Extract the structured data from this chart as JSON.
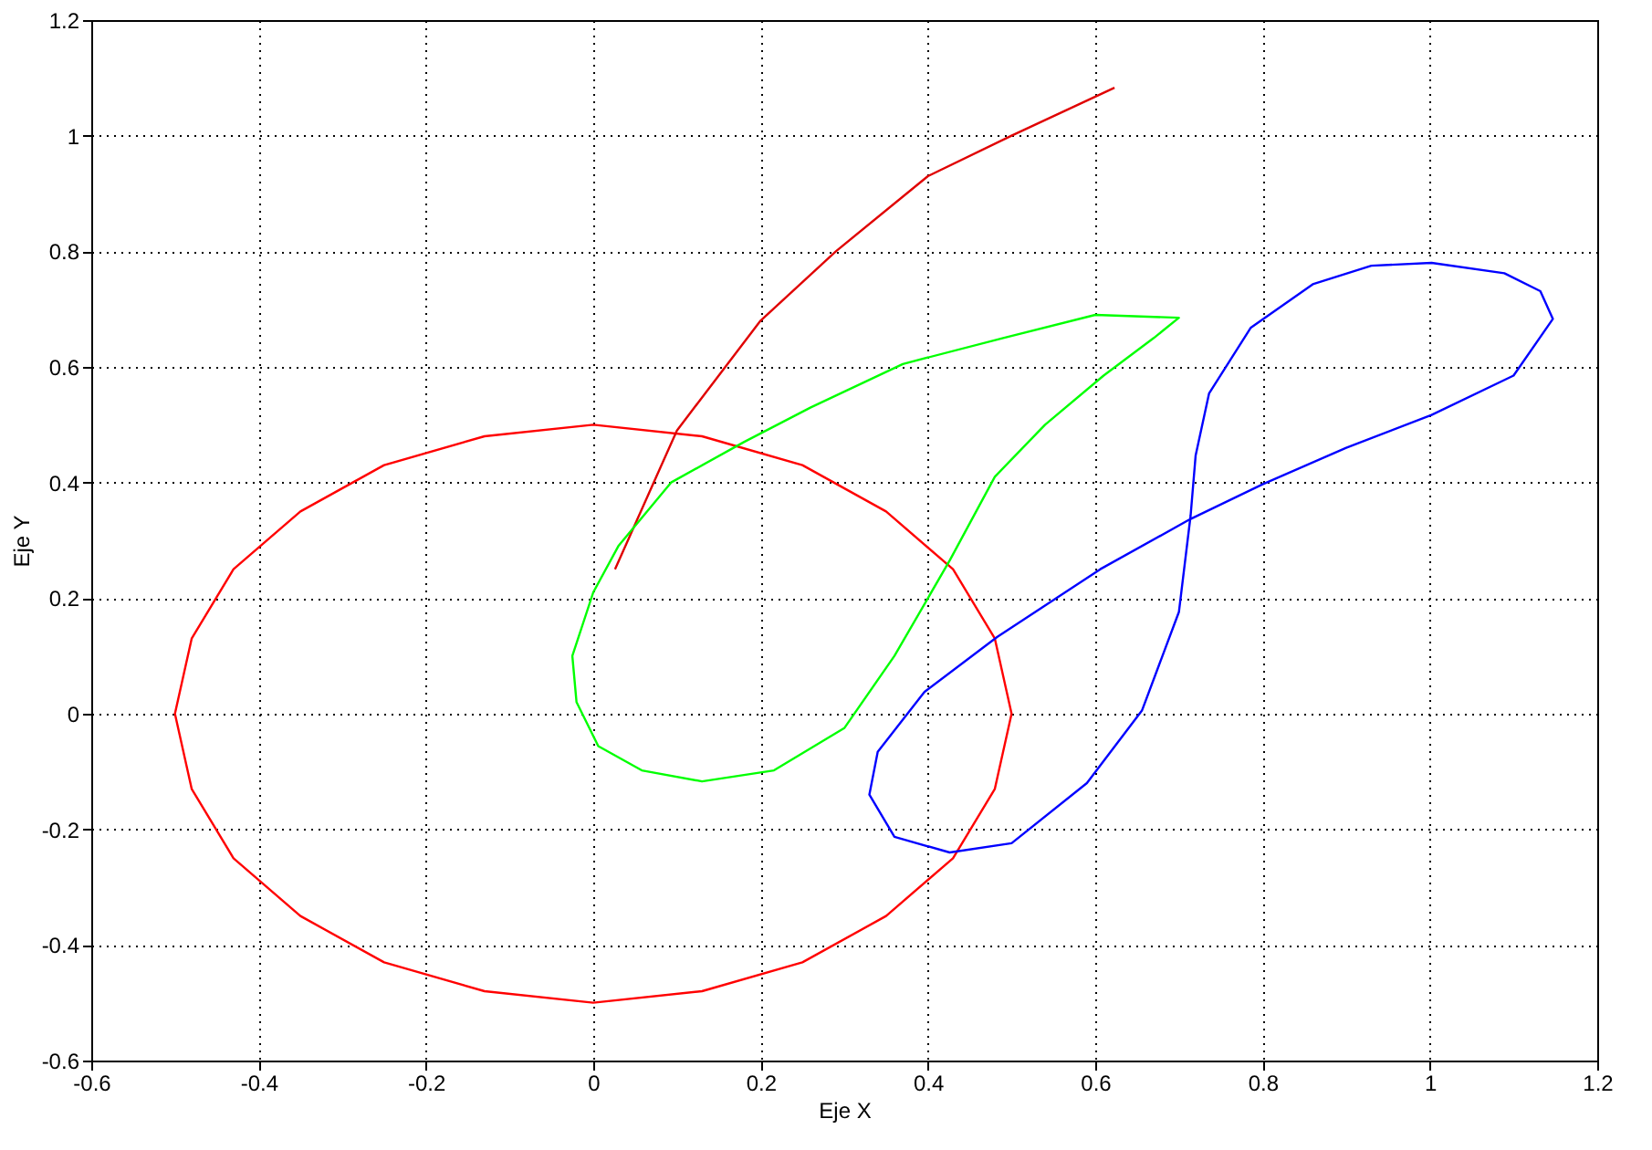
{
  "chart_data": {
    "type": "line",
    "xlabel": "Eje X",
    "ylabel": "Eje Y",
    "xlim": [
      -0.6,
      1.2
    ],
    "ylim": [
      -0.6,
      1.2
    ],
    "xticks": [
      -0.6,
      -0.4,
      -0.2,
      0,
      0.2,
      0.4,
      0.6,
      0.8,
      1,
      1.2
    ],
    "yticks": [
      -0.6,
      -0.4,
      -0.2,
      0,
      0.2,
      0.4,
      0.6,
      0.8,
      1,
      1.2
    ],
    "grid": true,
    "legend": false,
    "marker": "none",
    "line_style": "solid",
    "series": [
      {
        "color": "#ff0000",
        "x": [
          0.5,
          0.48,
          0.43,
          0.35,
          0.25,
          0.13,
          0,
          -0.13,
          -0.25,
          -0.35,
          -0.43,
          -0.48,
          -0.5,
          -0.48,
          -0.43,
          -0.35,
          -0.25,
          -0.13,
          0,
          0.13,
          0.25,
          0.35,
          0.43,
          0.48,
          0.5,
          0.48
        ],
        "values": [
          0,
          0.13,
          0.25,
          0.35,
          0.43,
          0.48,
          0.5,
          0.48,
          0.43,
          0.35,
          0.25,
          0.13,
          0,
          -0.13,
          -0.25,
          -0.35,
          -0.43,
          -0.48,
          -0.5,
          -0.48,
          -0.43,
          -0.35,
          -0.25,
          -0.13,
          0,
          0.13
        ]
      },
      {
        "color": "#e00000",
        "x": [
          0.026,
          0.1,
          0.2,
          0.29,
          0.4,
          0.5,
          0.623
        ],
        "values": [
          0.25,
          0.49,
          0.68,
          0.8,
          0.93,
          1.0,
          1.083
        ]
      },
      {
        "color": "#00ff00",
        "x": [
          0.7,
          0.6,
          0.49,
          0.37,
          0.26,
          0.18,
          0.093,
          0.03,
          0.0,
          -0.025,
          -0.02,
          0.006,
          0.058,
          0.13,
          0.216,
          0.3,
          0.36,
          0.426,
          0.48,
          0.54,
          0.61,
          0.67,
          0.7,
          0.6
        ],
        "values": [
          0.685,
          0.69,
          0.65,
          0.605,
          0.53,
          0.47,
          0.4,
          0.29,
          0.21,
          0.1,
          0.02,
          -0.056,
          -0.098,
          -0.117,
          -0.098,
          -0.025,
          0.1,
          0.265,
          0.41,
          0.5,
          0.585,
          0.65,
          0.685,
          0.69
        ]
      },
      {
        "color": "#0000ff",
        "x": [
          1.002,
          1.089,
          1.132,
          1.147,
          1.1,
          1.002,
          0.9,
          0.8,
          0.714,
          0.606,
          0.483,
          0.396,
          0.34,
          0.33,
          0.36,
          0.426,
          0.5,
          0.59,
          0.656,
          0.7,
          0.714,
          0.72,
          0.736,
          0.786,
          0.86,
          0.93,
          1.002,
          1.089
        ],
        "values": [
          0.78,
          0.762,
          0.731,
          0.683,
          0.585,
          0.517,
          0.46,
          0.397,
          0.337,
          0.25,
          0.133,
          0.038,
          -0.066,
          -0.14,
          -0.213,
          -0.24,
          -0.224,
          -0.12,
          0.006,
          0.176,
          0.343,
          0.447,
          0.554,
          0.668,
          0.743,
          0.775,
          0.78,
          0.762
        ]
      }
    ]
  }
}
